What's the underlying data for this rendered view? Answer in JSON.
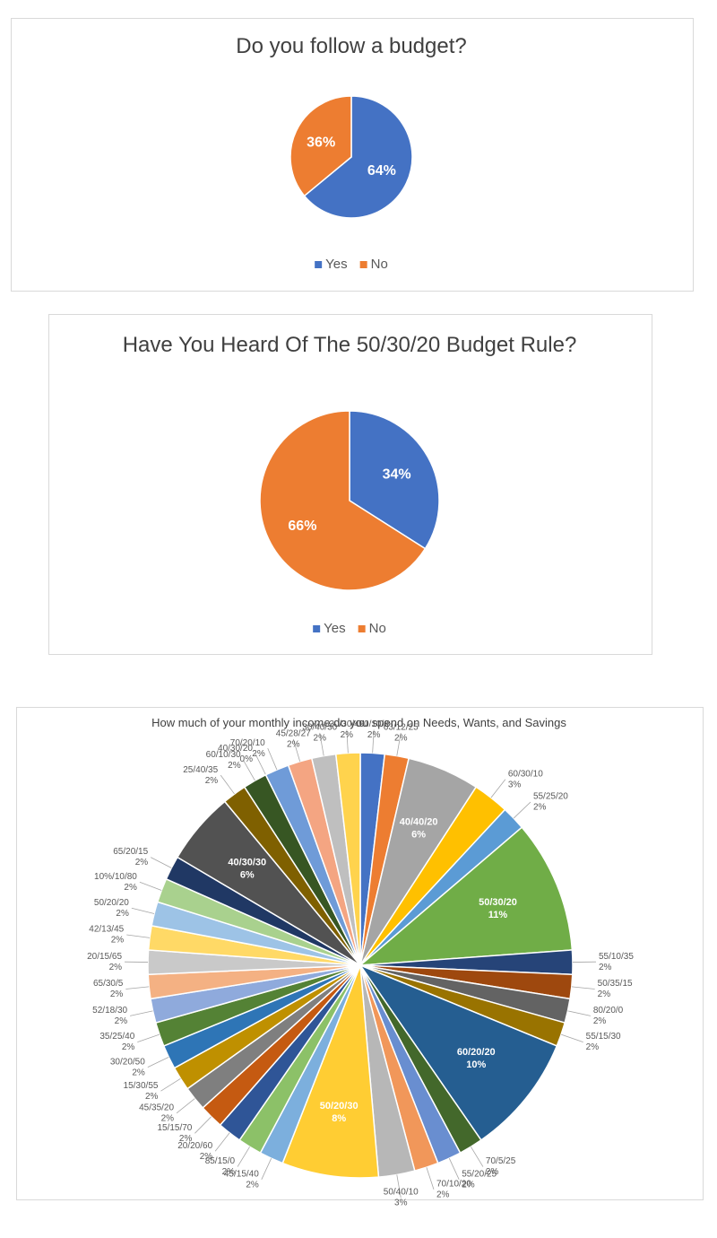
{
  "chart_data": [
    {
      "type": "pie",
      "title": "Do you follow a budget?",
      "categories": [
        "Yes",
        "No"
      ],
      "values": [
        64,
        36
      ],
      "value_labels": [
        "64%",
        "36%"
      ],
      "colors": [
        "#4472c4",
        "#ed7d31"
      ],
      "legend": "bottom"
    },
    {
      "type": "pie",
      "title": "Have You Heard Of The 50/30/20 Budget Rule?",
      "categories": [
        "Yes",
        "No"
      ],
      "values": [
        34,
        66
      ],
      "value_labels": [
        "34%",
        "66%"
      ],
      "colors": [
        "#4472c4",
        "#ed7d31"
      ],
      "legend": "bottom"
    },
    {
      "type": "pie",
      "title": "How much of your monthly income do you spend on Needs, Wants, and Savings",
      "categories": [
        "90/10/0",
        "63/12/25",
        "40/40/20",
        "60/30/10",
        "55/25/20",
        "50/30/20",
        "55/10/35",
        "50/35/15",
        "80/20/0",
        "55/15/30",
        "60/20/20",
        "70/5/25",
        "55/20/25",
        "70/10/20",
        "50/40/10",
        "50/20/30",
        "45/15/40",
        "85/15/0",
        "20/20/60",
        "15/15/70",
        "45/35/20",
        "15/30/55",
        "30/20/50",
        "35/25/40",
        "52/18/30",
        "65/30/5",
        "20/15/65",
        "42/13/45",
        "50/20/20",
        "10%/10/80",
        "65/20/15",
        "40/30/30",
        "25/40/35",
        "60/10/30",
        "40/30/20",
        "70/20/10",
        "45/28/27",
        "30/40/30",
        "30/30/40"
      ],
      "values": [
        2,
        2,
        6,
        3,
        2,
        11,
        2,
        2,
        2,
        2,
        10,
        2,
        2,
        2,
        3,
        8,
        2,
        2,
        2,
        2,
        2,
        2,
        2,
        2,
        2,
        2,
        2,
        2,
        2,
        2,
        2,
        6,
        2,
        2,
        0,
        2,
        2,
        2,
        2
      ],
      "value_labels": [
        "2%",
        "2%",
        "6%",
        "3%",
        "2%",
        "11%",
        "2%",
        "2%",
        "2%",
        "2%",
        "10%",
        "2%",
        "2%",
        "2%",
        "3%",
        "8%",
        "2%",
        "2%",
        "2%",
        "2%",
        "2%",
        "2%",
        "2%",
        "2%",
        "2%",
        "2%",
        "2%",
        "2%",
        "2%",
        "2%",
        "2%",
        "6%",
        "2%",
        "2%",
        "0%",
        "2%",
        "2%",
        "2%",
        "2%"
      ],
      "colors": [
        "#4472c4",
        "#ed7d31",
        "#a5a5a5",
        "#ffc000",
        "#5b9bd5",
        "#70ad47",
        "#264478",
        "#9e480e",
        "#636363",
        "#997300",
        "#255e91",
        "#43682b",
        "#698ed0",
        "#f1975a",
        "#b7b7b7",
        "#ffcd33",
        "#7cafdd",
        "#8cc168",
        "#2f5597",
        "#c55a11",
        "#7f7f7f",
        "#bf9000",
        "#2e75b6",
        "#548235",
        "#8faadc",
        "#f4b183",
        "#c9c9c9",
        "#ffd966",
        "#9dc3e6",
        "#a9d18e",
        "#203864",
        "#525252",
        "#7f6000",
        "#375623",
        "#1f4e79",
        "#6f9bd8",
        "#f4a582",
        "#bfbfbf",
        "#ffd34d"
      ]
    }
  ]
}
